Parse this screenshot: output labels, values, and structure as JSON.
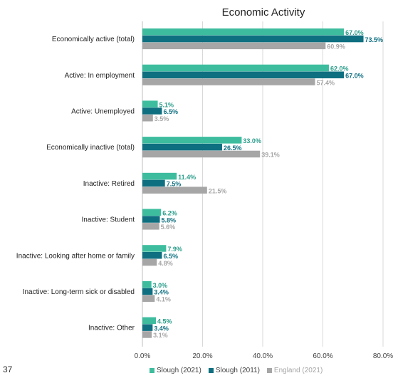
{
  "page": {
    "number": "37"
  },
  "colors": {
    "accent_tab": "#2a9d8a"
  },
  "chart_data": {
    "type": "bar",
    "orientation": "horizontal",
    "title": "Economic Activity",
    "xlabel": "",
    "ylabel": "",
    "xlim": [
      0,
      80
    ],
    "x_ticks": [
      "0.0%",
      "20.0%",
      "40.0%",
      "60.0%",
      "80.0%"
    ],
    "grid": true,
    "legend_position": "bottom",
    "categories": [
      "Economically active (total)",
      "Active: In employment",
      "Active: Unemployed",
      "Economically inactive (total)",
      "Inactive: Retired",
      "Inactive: Student",
      "Inactive: Looking after home or family",
      "Inactive: Long-term sick or disabled",
      "Inactive: Other"
    ],
    "series": [
      {
        "name": "Slough (2021)",
        "color": "#3dbd9e",
        "label_color": "#2a9d8a",
        "values": [
          67.0,
          62.0,
          5.1,
          33.0,
          11.4,
          6.2,
          7.9,
          3.0,
          4.5
        ],
        "labels": [
          "67.0%",
          "62.0%",
          "5.1%",
          "33.0%",
          "11.4%",
          "6.2%",
          "7.9%",
          "3.0%",
          "4.5%"
        ]
      },
      {
        "name": "Slough (2011)",
        "color": "#0e6f80",
        "label_color": "#0e6f80",
        "values": [
          73.5,
          67.0,
          6.5,
          26.5,
          7.5,
          5.8,
          6.5,
          3.4,
          3.4
        ],
        "labels": [
          "73.5%",
          "67.0%",
          "6.5%",
          "26.5%",
          "7.5%",
          "5.8%",
          "6.5%",
          "3.4%",
          "3.4%"
        ]
      },
      {
        "name": "England (2021)",
        "color": "#a6a6a6",
        "label_color": "#a6a6a6",
        "values": [
          60.9,
          57.4,
          3.5,
          39.1,
          21.5,
          5.6,
          4.8,
          4.1,
          3.1
        ],
        "labels": [
          "60.9%",
          "57.4%",
          "3.5%",
          "39.1%",
          "21.5%",
          "5.6%",
          "4.8%",
          "4.1%",
          "3.1%"
        ]
      }
    ]
  }
}
